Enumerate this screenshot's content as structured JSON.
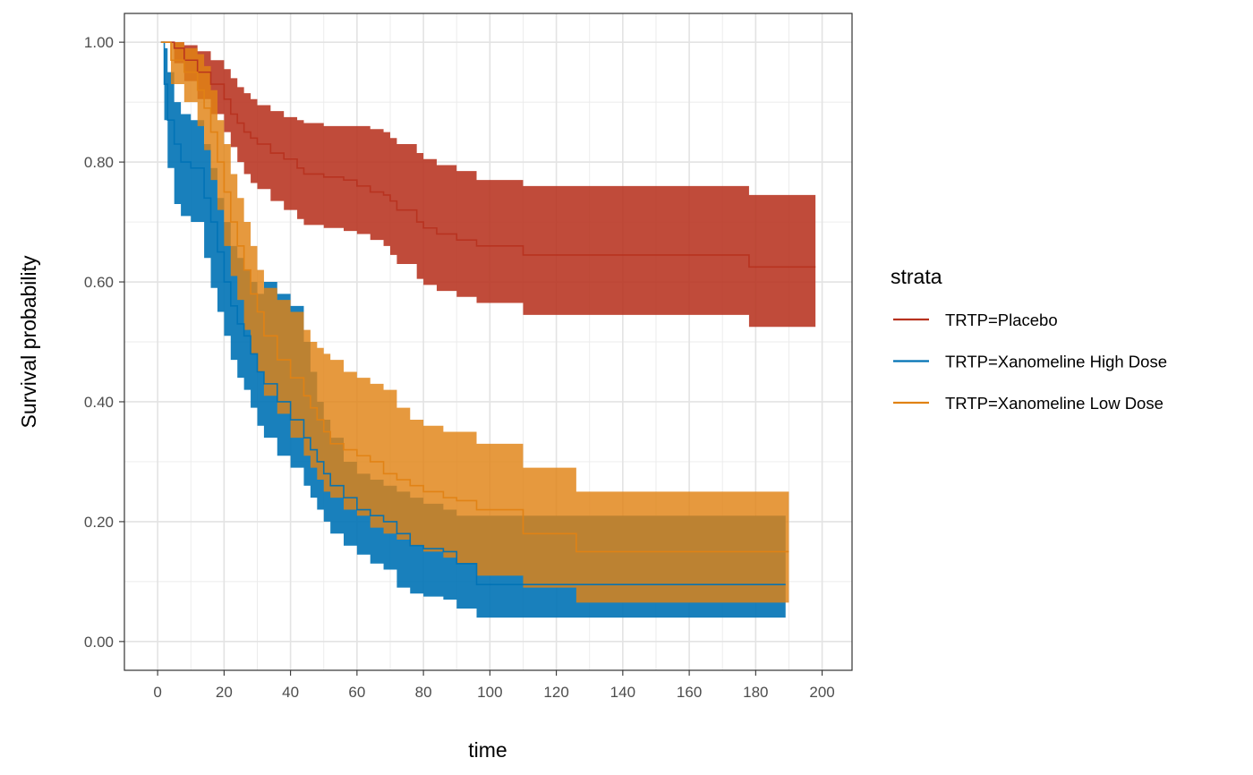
{
  "chart_data": {
    "type": "line",
    "subtype": "kaplan-meier survival curves with confidence bands",
    "title": "",
    "xlabel": "time",
    "ylabel": "Survival probability",
    "xlim": [
      -10,
      209
    ],
    "ylim": [
      -0.048,
      1.048
    ],
    "x_ticks": [
      0,
      20,
      40,
      60,
      80,
      100,
      120,
      140,
      160,
      180,
      200
    ],
    "x_tick_labels": [
      "0",
      "20",
      "40",
      "60",
      "80",
      "100",
      "120",
      "140",
      "160",
      "180",
      "200"
    ],
    "y_ticks": [
      0,
      0.2,
      0.4,
      0.6,
      0.8,
      1.0
    ],
    "y_tick_labels": [
      "0.00",
      "0.20",
      "0.40",
      "0.60",
      "0.80",
      "1.00"
    ],
    "grid": true,
    "theme": "black-and-white with light grey grid",
    "legend": {
      "title": "strata",
      "position": "right"
    },
    "series": [
      {
        "name": "TRTP=Placebo",
        "color": "#B7321F",
        "band_opacity": 0.88,
        "times": [
          1,
          5,
          8,
          12,
          16,
          20,
          22,
          24,
          26,
          28,
          30,
          34,
          38,
          42,
          44,
          50,
          56,
          60,
          64,
          68,
          70,
          72,
          78,
          80,
          84,
          90,
          96,
          110,
          130,
          150,
          170,
          178,
          198
        ],
        "survival": [
          1.0,
          0.99,
          0.97,
          0.95,
          0.93,
          0.905,
          0.88,
          0.865,
          0.85,
          0.84,
          0.83,
          0.815,
          0.805,
          0.79,
          0.78,
          0.775,
          0.77,
          0.76,
          0.75,
          0.745,
          0.735,
          0.72,
          0.7,
          0.69,
          0.68,
          0.67,
          0.66,
          0.645,
          0.645,
          0.645,
          0.645,
          0.625,
          0.625
        ],
        "lower": [
          1.0,
          0.965,
          0.935,
          0.905,
          0.88,
          0.85,
          0.825,
          0.8,
          0.78,
          0.765,
          0.755,
          0.735,
          0.72,
          0.705,
          0.695,
          0.69,
          0.685,
          0.68,
          0.67,
          0.66,
          0.645,
          0.63,
          0.605,
          0.595,
          0.585,
          0.575,
          0.565,
          0.545,
          0.545,
          0.545,
          0.545,
          0.525,
          0.525
        ],
        "upper": [
          1.0,
          1.0,
          0.995,
          0.985,
          0.97,
          0.955,
          0.94,
          0.925,
          0.915,
          0.905,
          0.895,
          0.885,
          0.875,
          0.87,
          0.865,
          0.86,
          0.86,
          0.86,
          0.855,
          0.85,
          0.84,
          0.83,
          0.815,
          0.805,
          0.795,
          0.785,
          0.77,
          0.76,
          0.76,
          0.76,
          0.76,
          0.745,
          0.745
        ]
      },
      {
        "name": "TRTP=Xanomeline High Dose",
        "color": "#0072B5",
        "band_opacity": 0.9,
        "times": [
          1,
          2,
          3,
          5,
          7,
          10,
          14,
          16,
          18,
          20,
          22,
          24,
          26,
          28,
          30,
          32,
          36,
          40,
          44,
          46,
          48,
          50,
          52,
          56,
          60,
          64,
          68,
          72,
          76,
          80,
          86,
          90,
          96,
          110,
          130,
          150,
          170,
          189
        ],
        "survival": [
          1.0,
          0.93,
          0.87,
          0.83,
          0.8,
          0.79,
          0.74,
          0.7,
          0.65,
          0.6,
          0.56,
          0.53,
          0.51,
          0.48,
          0.45,
          0.43,
          0.4,
          0.37,
          0.34,
          0.32,
          0.3,
          0.28,
          0.26,
          0.24,
          0.22,
          0.21,
          0.2,
          0.18,
          0.16,
          0.155,
          0.15,
          0.13,
          0.095,
          0.095,
          0.095,
          0.095,
          0.095,
          0.095
        ],
        "lower": [
          1.0,
          0.87,
          0.79,
          0.73,
          0.71,
          0.7,
          0.64,
          0.59,
          0.55,
          0.51,
          0.47,
          0.44,
          0.42,
          0.39,
          0.36,
          0.34,
          0.31,
          0.29,
          0.26,
          0.24,
          0.22,
          0.2,
          0.18,
          0.16,
          0.145,
          0.13,
          0.12,
          0.09,
          0.08,
          0.075,
          0.07,
          0.055,
          0.04,
          0.04,
          0.04,
          0.04,
          0.04,
          0.04
        ],
        "upper": [
          1.0,
          0.99,
          0.95,
          0.9,
          0.88,
          0.87,
          0.83,
          0.79,
          0.74,
          0.7,
          0.66,
          0.64,
          0.62,
          0.6,
          0.58,
          0.6,
          0.58,
          0.56,
          0.5,
          0.45,
          0.4,
          0.37,
          0.34,
          0.3,
          0.28,
          0.27,
          0.26,
          0.25,
          0.24,
          0.23,
          0.22,
          0.21,
          0.21,
          0.21,
          0.21,
          0.21,
          0.21,
          0.21
        ]
      },
      {
        "name": "TRTP=Xanomeline Low Dose",
        "color": "#E08214",
        "band_opacity": 0.82,
        "times": [
          1,
          4,
          8,
          12,
          14,
          16,
          18,
          20,
          22,
          24,
          26,
          28,
          30,
          32,
          36,
          40,
          44,
          46,
          48,
          50,
          52,
          56,
          60,
          64,
          68,
          72,
          76,
          80,
          86,
          90,
          96,
          110,
          126,
          150,
          170,
          190
        ],
        "survival": [
          1.0,
          0.97,
          0.95,
          0.92,
          0.89,
          0.85,
          0.8,
          0.75,
          0.7,
          0.66,
          0.62,
          0.58,
          0.55,
          0.51,
          0.47,
          0.44,
          0.41,
          0.39,
          0.37,
          0.35,
          0.33,
          0.32,
          0.31,
          0.3,
          0.28,
          0.27,
          0.26,
          0.25,
          0.24,
          0.235,
          0.22,
          0.18,
          0.15,
          0.15,
          0.15,
          0.15
        ],
        "lower": [
          1.0,
          0.93,
          0.9,
          0.86,
          0.82,
          0.77,
          0.72,
          0.66,
          0.61,
          0.57,
          0.52,
          0.48,
          0.45,
          0.41,
          0.38,
          0.34,
          0.31,
          0.29,
          0.27,
          0.25,
          0.24,
          0.22,
          0.21,
          0.19,
          0.18,
          0.17,
          0.16,
          0.15,
          0.14,
          0.13,
          0.11,
          0.09,
          0.065,
          0.065,
          0.065,
          0.065
        ],
        "upper": [
          1.0,
          1.0,
          0.99,
          0.98,
          0.96,
          0.92,
          0.87,
          0.83,
          0.78,
          0.74,
          0.7,
          0.66,
          0.62,
          0.59,
          0.57,
          0.55,
          0.52,
          0.5,
          0.49,
          0.48,
          0.47,
          0.45,
          0.44,
          0.43,
          0.42,
          0.39,
          0.37,
          0.36,
          0.35,
          0.35,
          0.33,
          0.29,
          0.25,
          0.25,
          0.25,
          0.25
        ]
      }
    ]
  }
}
